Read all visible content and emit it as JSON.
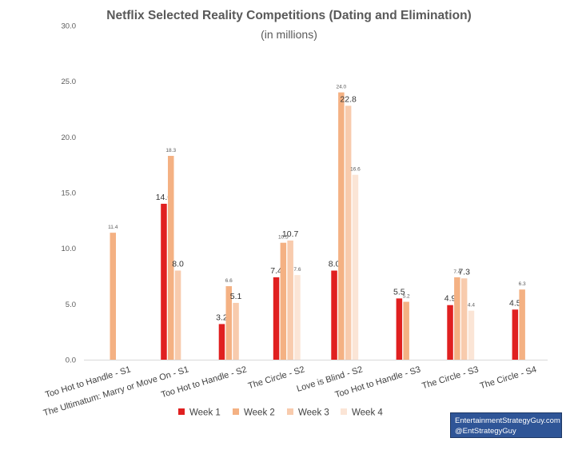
{
  "chart_data": {
    "type": "bar",
    "title": "Netflix Selected Reality Competitions (Dating and Elimination)",
    "subtitle": "(in millions)",
    "xlabel": "",
    "ylabel": "",
    "ylim": [
      0,
      30
    ],
    "yticks": [
      "0.0",
      "5.0",
      "10.0",
      "15.0",
      "20.0",
      "25.0",
      "30.0"
    ],
    "grid": false,
    "legend_position": "bottom",
    "categories": [
      "Too Hot to Handle - S1",
      "The Ultimatum: Marry or Move On - S1",
      "Too Hot to Handle - S2",
      "The Circle - S2",
      "Love is Blind - S2",
      "Too Hot to Handle - S3",
      "The Circle - S3",
      "The Circle - S4"
    ],
    "series": [
      {
        "name": "Week 1",
        "color": "#e02020",
        "values": [
          null,
          14.0,
          3.2,
          7.4,
          8.0,
          5.5,
          4.9,
          4.5
        ],
        "labels": [
          null,
          "14.0",
          "3.2",
          "7.4",
          "8.0",
          "5.5",
          "4.9",
          "4.5"
        ]
      },
      {
        "name": "Week 2",
        "color": "#f4b183",
        "values": [
          11.4,
          18.3,
          6.6,
          10.5,
          24.0,
          5.2,
          7.4,
          6.3
        ],
        "labels": [
          "11.4",
          "18.3",
          "6.6",
          "10.5",
          "24.0",
          "5.2",
          "7.4",
          "6.3"
        ]
      },
      {
        "name": "Week 3",
        "color": "#f8cbad",
        "values": [
          null,
          8.0,
          5.1,
          10.7,
          22.8,
          null,
          7.3,
          null
        ],
        "labels": [
          null,
          "8.0",
          "5.1",
          "10.7",
          "22.8",
          null,
          "7.3",
          null
        ]
      },
      {
        "name": "Week 4",
        "color": "#fbe5d6",
        "values": [
          null,
          null,
          null,
          7.6,
          16.6,
          null,
          4.4,
          null
        ],
        "labels": [
          null,
          null,
          null,
          "7.6",
          "16.6",
          null,
          "4.4",
          null
        ]
      }
    ],
    "label_emphasis": [
      [
        false,
        true,
        true,
        true,
        true,
        true,
        true,
        true
      ],
      [
        false,
        false,
        false,
        false,
        false,
        false,
        false,
        false
      ],
      [
        false,
        true,
        true,
        true,
        true,
        false,
        true,
        false
      ],
      [
        false,
        false,
        false,
        false,
        false,
        false,
        false,
        false
      ]
    ]
  },
  "credit": {
    "line1": "EntertainmentStrategyGuy.com",
    "line2": "@EntStrategyGuy"
  }
}
